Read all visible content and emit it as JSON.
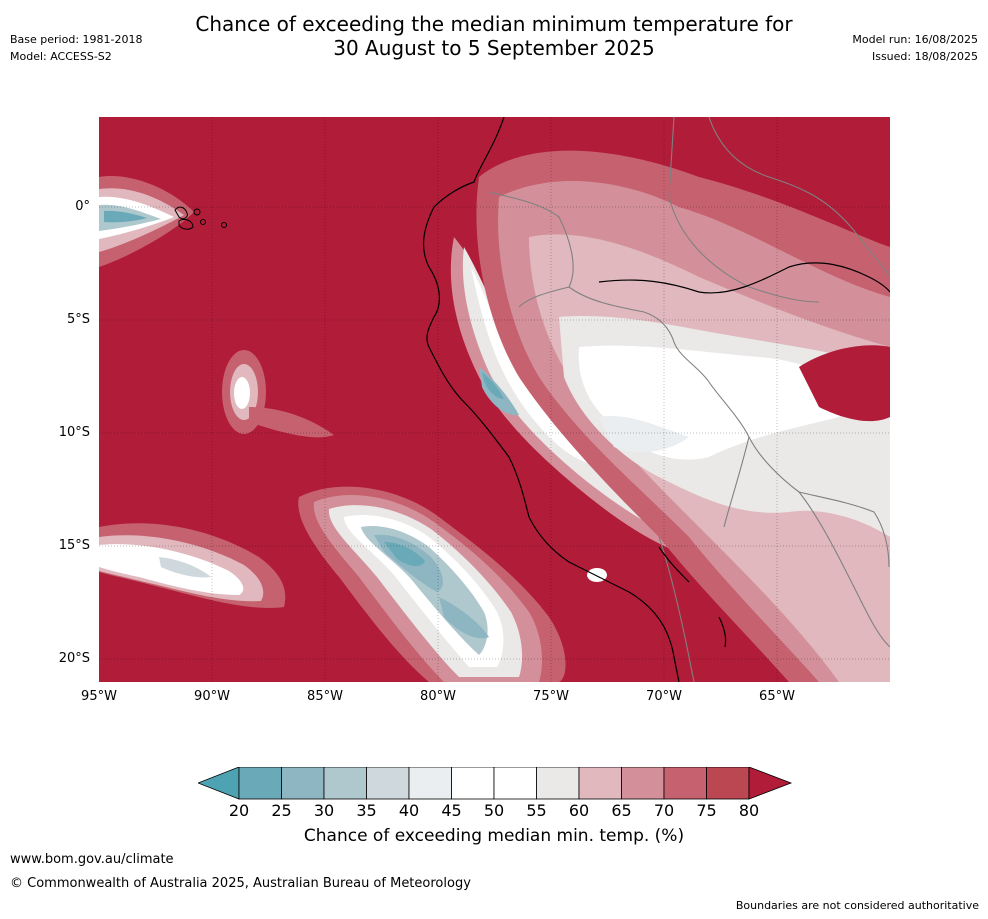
{
  "title": {
    "line1": "Chance of exceeding the median minimum temperature for",
    "line2": "30 August to 5 September 2025"
  },
  "meta_left": {
    "base_period": "Base period: 1981-2018",
    "model": "Model: ACCESS-S2"
  },
  "meta_right": {
    "model_run": "Model run: 16/08/2025",
    "issued": "Issued: 18/08/2025"
  },
  "map": {
    "lat_labels": [
      "0°",
      "5°S",
      "10°S",
      "15°S",
      "20°S"
    ],
    "lon_labels": [
      "95°W",
      "90°W",
      "85°W",
      "80°W",
      "75°W",
      "70°W",
      "65°W"
    ],
    "colors": {
      "background_high": "#b11c38",
      "coast": "#000000",
      "border": "#808080"
    }
  },
  "legend": {
    "title": "Chance of exceeding median min. temp. (%)",
    "ticks": [
      "20",
      "25",
      "30",
      "35",
      "40",
      "45",
      "50",
      "55",
      "60",
      "65",
      "70",
      "75",
      "80"
    ],
    "colors": [
      "#4ea3b3",
      "#6aaab8",
      "#8db6c2",
      "#aec8cd",
      "#cfd8dc",
      "#eaeef1",
      "#ffffff",
      "#ffffff",
      "#ebe8e8",
      "#e0b8bd",
      "#d3909a",
      "#c6616f",
      "#bb4753",
      "#b11c38"
    ]
  },
  "footer": {
    "url": "www.bom.gov.au/climate",
    "copyright": "© Commonwealth of Australia 2025, Australian Bureau of Meteorology",
    "disclaimer": "Boundaries are not considered authoritative"
  }
}
